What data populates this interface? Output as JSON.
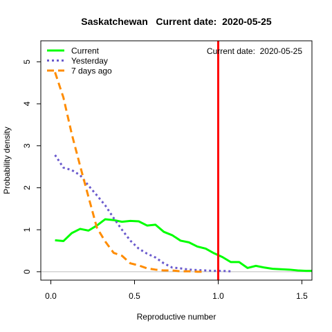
{
  "chart_data": {
    "type": "line",
    "title": "Saskatchewan   Current date:  2020-05-25",
    "xlabel": "Reproductive number",
    "ylabel": "Probability density",
    "xlim": [
      -0.06,
      1.56
    ],
    "ylim": [
      -0.2,
      5.5
    ],
    "x_ticks": [
      0.0,
      0.5,
      1.0,
      1.5
    ],
    "x_tick_labels": [
      "0.0",
      "0.5",
      "1.0",
      "1.5"
    ],
    "y_ticks": [
      0,
      1,
      2,
      3,
      4,
      5
    ],
    "y_tick_labels": [
      "0",
      "1",
      "2",
      "3",
      "4",
      "5"
    ],
    "annotation": "Current date:  2020-05-25",
    "legend_position": "top-left",
    "vline": {
      "x": 1.0,
      "color": "#ff0000"
    },
    "hline": {
      "y": 0,
      "color": "#bbbbbb"
    },
    "series": [
      {
        "name": "Current",
        "color": "#00ff00",
        "dash": "solid",
        "x": [
          0.025,
          0.075,
          0.125,
          0.175,
          0.225,
          0.275,
          0.325,
          0.375,
          0.425,
          0.475,
          0.525,
          0.575,
          0.625,
          0.675,
          0.725,
          0.775,
          0.825,
          0.875,
          0.925,
          0.975,
          1.025,
          1.075,
          1.125,
          1.175,
          1.225,
          1.275,
          1.325,
          1.375,
          1.425,
          1.475,
          1.525,
          1.575
        ],
        "y": [
          0.75,
          0.73,
          0.92,
          1.02,
          0.98,
          1.1,
          1.25,
          1.23,
          1.19,
          1.21,
          1.2,
          1.1,
          1.12,
          0.95,
          0.87,
          0.74,
          0.7,
          0.6,
          0.55,
          0.44,
          0.35,
          0.23,
          0.23,
          0.09,
          0.14,
          0.1,
          0.07,
          0.06,
          0.05,
          0.03,
          0.02,
          0.02
        ]
      },
      {
        "name": "Yesterday",
        "color": "#6a5acd",
        "dash": "dotted",
        "x": [
          0.025,
          0.075,
          0.125,
          0.175,
          0.225,
          0.275,
          0.325,
          0.375,
          0.425,
          0.475,
          0.525,
          0.575,
          0.625,
          0.675,
          0.725,
          0.775,
          0.825,
          0.875,
          0.925,
          0.975,
          1.025,
          1.075
        ],
        "y": [
          2.78,
          2.48,
          2.42,
          2.3,
          2.05,
          1.82,
          1.58,
          1.28,
          1.0,
          0.74,
          0.55,
          0.43,
          0.34,
          0.2,
          0.1,
          0.08,
          0.05,
          0.04,
          0.03,
          0.02,
          0.02,
          0.01
        ]
      },
      {
        "name": "7 days ago",
        "color": "#ff8c00",
        "dash": "dashed",
        "x": [
          0.025,
          0.075,
          0.125,
          0.175,
          0.225,
          0.275,
          0.325,
          0.375,
          0.425,
          0.475,
          0.525,
          0.575,
          0.625,
          0.675,
          0.725,
          0.775,
          0.825,
          0.875,
          0.925
        ],
        "y": [
          4.75,
          4.15,
          3.28,
          2.52,
          1.78,
          1.05,
          0.72,
          0.45,
          0.38,
          0.2,
          0.15,
          0.08,
          0.05,
          0.03,
          0.03,
          0.01,
          0.01,
          0.0,
          0.0
        ]
      }
    ]
  }
}
